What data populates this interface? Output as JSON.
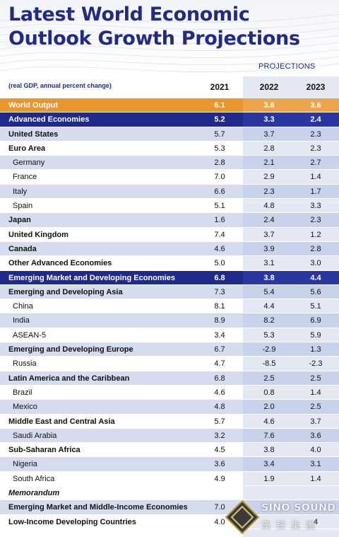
{
  "header": {
    "title_line1": "Latest World Economic",
    "title_line2": "Outlook Growth Projections",
    "projections_label": "PROJECTIONS",
    "subtitle": "(real GDP, annual percent change)",
    "years": [
      "2021",
      "2022",
      "2023"
    ]
  },
  "rows": [
    {
      "label": "World Output",
      "v": [
        "6.1",
        "3.6",
        "3.6"
      ],
      "style": "orange"
    },
    {
      "label": "Advanced Economies",
      "v": [
        "5.2",
        "3.3",
        "2.4"
      ],
      "style": "blue"
    },
    {
      "label": "United States",
      "v": [
        "5.7",
        "3.7",
        "2.3"
      ],
      "style": "alt",
      "bold": true
    },
    {
      "label": "Euro Area",
      "v": [
        "5.3",
        "2.8",
        "2.3"
      ],
      "style": "plain",
      "bold": true
    },
    {
      "label": "Germany",
      "v": [
        "2.8",
        "2.1",
        "2.7"
      ],
      "style": "alt",
      "sub": true
    },
    {
      "label": "France",
      "v": [
        "7.0",
        "2.9",
        "1.4"
      ],
      "style": "plain",
      "sub": true
    },
    {
      "label": "Italy",
      "v": [
        "6.6",
        "2.3",
        "1.7"
      ],
      "style": "alt",
      "sub": true
    },
    {
      "label": "Spain",
      "v": [
        "5.1",
        "4.8",
        "3.3"
      ],
      "style": "plain",
      "sub": true
    },
    {
      "label": "Japan",
      "v": [
        "1.6",
        "2.4",
        "2.3"
      ],
      "style": "alt",
      "bold": true
    },
    {
      "label": "United Kingdom",
      "v": [
        "7.4",
        "3.7",
        "1.2"
      ],
      "style": "plain",
      "bold": true
    },
    {
      "label": "Canada",
      "v": [
        "4.6",
        "3.9",
        "2.8"
      ],
      "style": "alt",
      "bold": true
    },
    {
      "label": "Other Advanced Economies",
      "v": [
        "5.0",
        "3.1",
        "3.0"
      ],
      "style": "plain",
      "bold": true
    },
    {
      "label": "Emerging Market and Developing Economies",
      "v": [
        "6.8",
        "3.8",
        "4.4"
      ],
      "style": "blue"
    },
    {
      "label": "Emerging and Developing Asia",
      "v": [
        "7.3",
        "5.4",
        "5.6"
      ],
      "style": "alt",
      "bold": true
    },
    {
      "label": "China",
      "v": [
        "8.1",
        "4.4",
        "5.1"
      ],
      "style": "plain",
      "sub": true
    },
    {
      "label": "India",
      "v": [
        "8.9",
        "8.2",
        "6.9"
      ],
      "style": "alt",
      "sub": true
    },
    {
      "label": "ASEAN-5",
      "v": [
        "3.4",
        "5.3",
        "5.9"
      ],
      "style": "plain",
      "sub": true
    },
    {
      "label": "Emerging and Developing Europe",
      "v": [
        "6.7",
        "-2.9",
        "1.3"
      ],
      "style": "alt",
      "bold": true
    },
    {
      "label": "Russia",
      "v": [
        "4.7",
        "-8.5",
        "-2.3"
      ],
      "style": "plain",
      "sub": true
    },
    {
      "label": "Latin America and the Caribbean",
      "v": [
        "6.8",
        "2.5",
        "2.5"
      ],
      "style": "alt",
      "bold": true
    },
    {
      "label": "Brazil",
      "v": [
        "4.6",
        "0.8",
        "1.4"
      ],
      "style": "plain",
      "sub": true
    },
    {
      "label": "Mexico",
      "v": [
        "4.8",
        "2.0",
        "2.5"
      ],
      "style": "alt",
      "sub": true
    },
    {
      "label": "Middle East and Central Asia",
      "v": [
        "5.7",
        "4.6",
        "3.7"
      ],
      "style": "plain",
      "bold": true
    },
    {
      "label": "Saudi Arabia",
      "v": [
        "3.2",
        "7.6",
        "3.6"
      ],
      "style": "alt",
      "sub": true
    },
    {
      "label": "Sub-Saharan Africa",
      "v": [
        "4.5",
        "3.8",
        "4.0"
      ],
      "style": "plain",
      "bold": true
    },
    {
      "label": "Nigeria",
      "v": [
        "3.6",
        "3.4",
        "3.1"
      ],
      "style": "alt",
      "sub": true
    },
    {
      "label": "South Africa",
      "v": [
        "4.9",
        "1.9",
        "1.4"
      ],
      "style": "plain",
      "sub": true
    },
    {
      "label": "Memorandum",
      "v": [
        "",
        "",
        ""
      ],
      "style": "memo"
    },
    {
      "label": "Emerging Market and Middle-Income Economies",
      "v": [
        "7.0",
        "",
        ""
      ],
      "style": "alt",
      "bold": true
    },
    {
      "label": "Low-Income Developing Countries",
      "v": [
        "4.0",
        "",
        "4"
      ],
      "style": "plain",
      "bold": true
    }
  ],
  "watermark": {
    "text": "SINO SOUND",
    "chinese": "漢聲集團"
  },
  "colors": {
    "title": "#1f2a8a",
    "orange_row": "#e9962e",
    "blue_row": "#1f2a8a",
    "alt_row": "#d4dcee"
  }
}
